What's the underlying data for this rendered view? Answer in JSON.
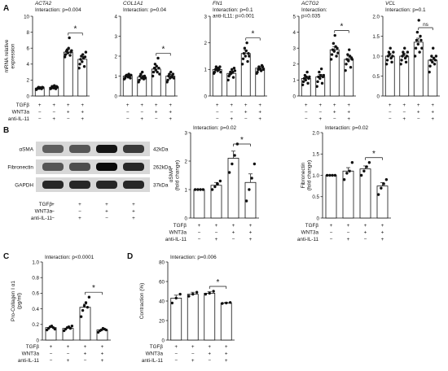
{
  "panels": {
    "A": "A",
    "B": "B",
    "C": "C",
    "D": "D"
  },
  "colors": {
    "bar_fill": "#ffffff",
    "bar_stroke": "#111111",
    "dot": "#111111"
  },
  "row_labels": {
    "A": [
      "TGFβ",
      "WNT3a",
      "anti-IL-11"
    ],
    "B": [
      "TGFβ",
      "WNT3a",
      "anti-IL-11"
    ],
    "C": [
      "TGFβ",
      "WNT3a",
      "anti-IL-11"
    ],
    "D": [
      "TGFβ",
      "WNT3a",
      "anti-IL-11"
    ]
  },
  "treatment_signs": [
    [
      "+",
      "+",
      "+",
      "+"
    ],
    [
      "−",
      "−",
      "+",
      "+"
    ],
    [
      "−",
      "+",
      "−",
      "+"
    ]
  ],
  "western_blot": {
    "rows": [
      {
        "protein": "αSMA",
        "size": "42kDa",
        "intensities": [
          0.55,
          0.6,
          0.95,
          0.75
        ]
      },
      {
        "protein": "Fibronectin",
        "size": "262kDa",
        "intensities": [
          0.6,
          0.65,
          1.0,
          0.85
        ]
      },
      {
        "protein": "GAPDH",
        "size": "37kDa",
        "intensities": [
          0.85,
          0.85,
          0.85,
          0.85
        ]
      }
    ]
  },
  "chart_data": [
    {
      "id": "A1",
      "type": "bar",
      "gene": "ACTA2",
      "interaction": "Interaction: p=0.004",
      "ylabel": "mRNA relative\nexpression",
      "ylim": [
        0,
        10
      ],
      "yticks": [
        0,
        2,
        4,
        6,
        8,
        10
      ],
      "categories": [
        "1",
        "2",
        "3",
        "4"
      ],
      "values": [
        1.0,
        1.1,
        5.5,
        4.6
      ],
      "errors": [
        0.08,
        0.1,
        0.3,
        0.35
      ],
      "points": [
        [
          0.8,
          0.9,
          1.0,
          1.1,
          0.95,
          1.05,
          1.0,
          0.9,
          1.1,
          1.05
        ],
        [
          0.9,
          1.0,
          1.2,
          1.1,
          1.0,
          1.3,
          1.1,
          0.9,
          1.2,
          1.1
        ],
        [
          4.9,
          5.2,
          5.6,
          5.8,
          5.4,
          6.0,
          7.3,
          5.1,
          5.5,
          5.7
        ],
        [
          3.5,
          4.0,
          4.6,
          5.0,
          4.3,
          5.2,
          4.8,
          3.7,
          4.9,
          5.5
        ]
      ],
      "sig": [
        2,
        3
      ],
      "sig_label": "*",
      "ns": false
    },
    {
      "id": "A2",
      "type": "bar",
      "gene": "COL1A1",
      "interaction": "Interaction: p=0.04",
      "ylabel": "",
      "ylim": [
        0,
        4
      ],
      "yticks": [
        0,
        1,
        2,
        3,
        4
      ],
      "categories": [
        "1",
        "2",
        "3",
        "4"
      ],
      "values": [
        1.0,
        0.95,
        1.35,
        1.0
      ],
      "errors": [
        0.05,
        0.08,
        0.1,
        0.08
      ],
      "points": [
        [
          0.85,
          0.9,
          1.0,
          1.05,
          1.0,
          0.95,
          1.1,
          1.0,
          0.9,
          1.05
        ],
        [
          0.7,
          0.8,
          1.0,
          1.1,
          0.9,
          1.2,
          0.95,
          0.85,
          1.0,
          0.9
        ],
        [
          1.0,
          1.2,
          1.4,
          1.6,
          1.3,
          1.5,
          1.2,
          1.9,
          1.4,
          1.1
        ],
        [
          0.7,
          0.8,
          1.0,
          1.1,
          0.9,
          1.2,
          0.95,
          1.0,
          1.1,
          0.9
        ]
      ],
      "sig": [
        2,
        3
      ],
      "sig_label": "*",
      "ns": false
    },
    {
      "id": "A3",
      "type": "bar",
      "gene": "FN1",
      "interaction": "Interaction: p=0.1",
      "interaction2": "anti-IL11: p=0.001",
      "ylabel": "",
      "ylim": [
        0,
        3
      ],
      "yticks": [
        0,
        1,
        2,
        3
      ],
      "categories": [
        "1",
        "2",
        "3",
        "4"
      ],
      "values": [
        1.0,
        0.85,
        1.6,
        1.05
      ],
      "errors": [
        0.05,
        0.07,
        0.12,
        0.06
      ],
      "points": [
        [
          0.85,
          0.9,
          1.0,
          1.1,
          1.0,
          0.95,
          1.05,
          1.0,
          1.1,
          0.9
        ],
        [
          0.6,
          0.75,
          0.8,
          0.9,
          0.85,
          1.0,
          0.9,
          0.7,
          1.05,
          0.95
        ],
        [
          1.2,
          1.4,
          1.6,
          1.8,
          1.5,
          1.7,
          2.0,
          1.3,
          1.6,
          1.5
        ],
        [
          0.85,
          0.9,
          1.0,
          1.1,
          1.05,
          1.0,
          0.95,
          1.15,
          1.1,
          1.0
        ]
      ],
      "sig": [
        2,
        3
      ],
      "sig_label": "*",
      "ns": false
    },
    {
      "id": "A4",
      "type": "bar",
      "gene": "ACTG2",
      "interaction": "Interaction:",
      "interaction2": "p=0.035",
      "ylabel": "",
      "ylim": [
        0,
        5
      ],
      "yticks": [
        0,
        1,
        2,
        3,
        4,
        5
      ],
      "categories": [
        "1",
        "2",
        "3",
        "4"
      ],
      "values": [
        1.1,
        1.2,
        2.9,
        2.3
      ],
      "errors": [
        0.1,
        0.15,
        0.2,
        0.2
      ],
      "points": [
        [
          0.7,
          0.9,
          1.1,
          1.3,
          1.0,
          1.2,
          1.5,
          0.8,
          1.1,
          1.2
        ],
        [
          0.6,
          0.9,
          1.2,
          1.5,
          1.1,
          1.3,
          1.7,
          0.8,
          1.2,
          1.3
        ],
        [
          2.3,
          2.6,
          2.9,
          3.3,
          2.8,
          3.8,
          3.1,
          2.5,
          3.0,
          2.7
        ],
        [
          1.6,
          2.0,
          2.3,
          2.6,
          2.2,
          2.9,
          2.5,
          1.8,
          2.4,
          2.3
        ]
      ],
      "sig": [
        2,
        3
      ],
      "sig_label": "*",
      "ns": false
    },
    {
      "id": "A5",
      "type": "bar",
      "gene": "VCL",
      "interaction": "Interaction: p=0.1",
      "ylabel": "",
      "ylim": [
        0,
        2.0
      ],
      "yticks": [
        0,
        0.5,
        1.0,
        1.5,
        2.0
      ],
      "categories": [
        "1",
        "2",
        "3",
        "4"
      ],
      "values": [
        1.0,
        1.0,
        1.35,
        0.9
      ],
      "errors": [
        0.06,
        0.06,
        0.1,
        0.07
      ],
      "points": [
        [
          0.8,
          0.9,
          1.0,
          1.1,
          1.05,
          1.2,
          0.95,
          0.85,
          1.0,
          1.1
        ],
        [
          0.8,
          0.9,
          1.0,
          1.1,
          1.05,
          1.2,
          0.95,
          0.85,
          1.0,
          1.1
        ],
        [
          1.0,
          1.2,
          1.4,
          1.6,
          1.3,
          1.9,
          1.1,
          1.5,
          1.4,
          1.2
        ],
        [
          0.6,
          0.75,
          0.9,
          1.0,
          0.85,
          1.2,
          0.95,
          0.8,
          0.9,
          1.0
        ]
      ],
      "sig": [
        2,
        3
      ],
      "sig_label": "ns",
      "ns": true
    },
    {
      "id": "B1",
      "type": "bar",
      "gene": "",
      "interaction": "Interaction: p=0.02",
      "ylabel": "αSMA\n(fold change)",
      "ylim": [
        0,
        3
      ],
      "yticks": [
        0,
        1,
        2,
        3
      ],
      "categories": [
        "1",
        "2",
        "3",
        "4"
      ],
      "values": [
        1.0,
        1.15,
        2.1,
        1.25
      ],
      "errors": [
        0.0,
        0.1,
        0.25,
        0.3
      ],
      "points": [
        [
          1.0,
          1.0,
          1.0,
          1.0
        ],
        [
          1.0,
          1.1,
          1.2,
          1.3
        ],
        [
          1.6,
          1.9,
          2.2,
          2.6
        ],
        [
          0.6,
          1.0,
          1.4,
          1.9
        ]
      ],
      "sig": [
        2,
        3
      ],
      "sig_label": "*",
      "ns": false
    },
    {
      "id": "B2",
      "type": "bar",
      "gene": "",
      "interaction": "Interaction: p=0.02",
      "ylabel": "Fibronectin\n(fold change)",
      "ylim": [
        0,
        2.0
      ],
      "yticks": [
        0,
        0.5,
        1.0,
        1.5,
        2.0
      ],
      "categories": [
        "1",
        "2",
        "3",
        "4"
      ],
      "values": [
        1.0,
        1.1,
        1.15,
        0.75
      ],
      "errors": [
        0.0,
        0.08,
        0.07,
        0.08
      ],
      "points": [
        [
          1.0,
          1.0,
          1.0,
          1.0
        ],
        [
          0.9,
          1.05,
          1.1,
          1.3
        ],
        [
          1.0,
          1.1,
          1.2,
          1.3
        ],
        [
          0.55,
          0.7,
          0.8,
          0.9
        ]
      ],
      "sig": [
        2,
        3
      ],
      "sig_label": "*",
      "ns": false
    },
    {
      "id": "C",
      "type": "bar",
      "gene": "",
      "interaction": "Interaction: p<0.0001",
      "ylabel": "Pro-Collagen I α1\n(pg/ml)",
      "ylim": [
        0,
        1.0
      ],
      "yticks": [
        0,
        0.2,
        0.4,
        0.6,
        0.8,
        1.0
      ],
      "categories": [
        "1",
        "2",
        "3",
        "4"
      ],
      "values": [
        0.16,
        0.15,
        0.42,
        0.13
      ],
      "errors": [
        0.01,
        0.01,
        0.04,
        0.01
      ],
      "points": [
        [
          0.13,
          0.15,
          0.17,
          0.18,
          0.16,
          0.14
        ],
        [
          0.12,
          0.14,
          0.16,
          0.17,
          0.15,
          0.18
        ],
        [
          0.3,
          0.38,
          0.44,
          0.48,
          0.42,
          0.55
        ],
        [
          0.1,
          0.12,
          0.13,
          0.15,
          0.14,
          0.13
        ]
      ],
      "sig": [
        2,
        3
      ],
      "sig_label": "*",
      "ns": false
    },
    {
      "id": "D",
      "type": "bar",
      "gene": "",
      "interaction": "Interaction: p=0.006",
      "ylabel": "Contraction (%)",
      "ylim": [
        0,
        80
      ],
      "yticks": [
        0,
        20,
        40,
        60,
        80
      ],
      "categories": [
        "1",
        "2",
        "3",
        "4"
      ],
      "values": [
        43,
        47,
        48,
        38
      ],
      "errors": [
        3,
        2,
        1.5,
        0.5
      ],
      "points": [
        [
          38,
          43,
          47
        ],
        [
          45,
          47,
          49
        ],
        [
          47,
          48,
          50
        ],
        [
          37.5,
          38,
          38.5
        ]
      ],
      "sig": [
        2,
        3
      ],
      "sig_label": "*",
      "ns": false
    }
  ]
}
